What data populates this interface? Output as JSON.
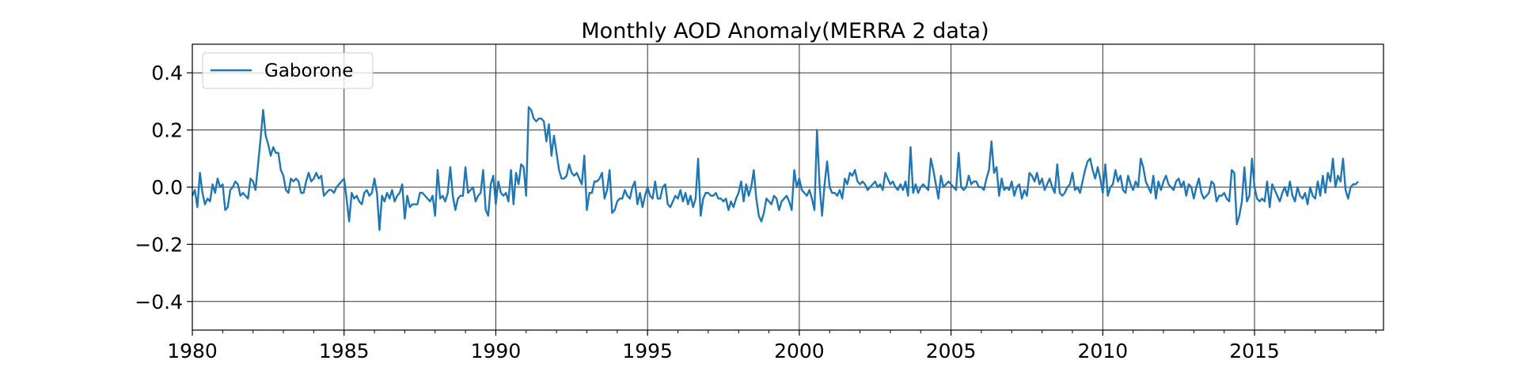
{
  "chart_data": {
    "type": "line",
    "title": "Monthly AOD Anomaly(MERRA 2 data)",
    "xlabel": "",
    "ylabel": "",
    "xlim": [
      1980.0,
      2019.25
    ],
    "ylim": [
      -0.5,
      0.5
    ],
    "x_ticks": [
      1980,
      1985,
      1990,
      1995,
      2000,
      2005,
      2010,
      2015
    ],
    "x_tick_labels": [
      "1980",
      "1985",
      "1990",
      "1995",
      "2000",
      "2005",
      "2010",
      "2015"
    ],
    "y_ticks": [
      -0.4,
      -0.2,
      0.0,
      0.2,
      0.4
    ],
    "y_tick_labels": [
      "−0.4",
      "−0.2",
      "0.0",
      "0.2",
      "0.4"
    ],
    "grid": true,
    "legend_position": "top-left",
    "line_color": "#1f77b4",
    "series": [
      {
        "name": "Gaborone",
        "x_start": "1980-01",
        "frequency": "monthly",
        "values": [
          -0.03,
          -0.01,
          -0.07,
          0.05,
          -0.02,
          -0.06,
          -0.04,
          -0.05,
          0.01,
          -0.02,
          0.03,
          0.0,
          0.01,
          -0.08,
          -0.07,
          -0.01,
          0.0,
          0.02,
          0.01,
          -0.03,
          -0.02,
          -0.03,
          -0.04,
          0.03,
          0.02,
          -0.01,
          0.08,
          0.17,
          0.27,
          0.18,
          0.15,
          0.11,
          0.14,
          0.12,
          0.12,
          0.06,
          0.04,
          -0.01,
          -0.02,
          0.03,
          0.02,
          0.03,
          0.02,
          -0.02,
          -0.02,
          0.02,
          0.05,
          0.02,
          0.03,
          0.05,
          0.03,
          0.04,
          -0.03,
          -0.02,
          -0.01,
          -0.01,
          -0.02,
          0.0,
          0.01,
          0.02,
          0.03,
          -0.04,
          -0.12,
          -0.02,
          -0.04,
          -0.03,
          -0.05,
          -0.06,
          -0.02,
          -0.01,
          -0.03,
          -0.02,
          0.03,
          -0.02,
          -0.15,
          -0.03,
          -0.05,
          -0.02,
          -0.04,
          -0.01,
          -0.05,
          -0.03,
          -0.02,
          0.01,
          -0.11,
          -0.03,
          -0.07,
          -0.06,
          -0.06,
          -0.06,
          -0.02,
          -0.02,
          -0.03,
          -0.04,
          -0.05,
          -0.03,
          -0.1,
          0.06,
          -0.04,
          -0.03,
          -0.05,
          -0.02,
          0.07,
          -0.03,
          -0.08,
          -0.04,
          -0.03,
          -0.03,
          0.07,
          -0.02,
          -0.01,
          0.0,
          -0.05,
          -0.03,
          -0.02,
          0.06,
          -0.08,
          -0.1,
          0.01,
          0.04,
          -0.06,
          0.02,
          -0.02,
          -0.03,
          -0.02,
          -0.05,
          0.06,
          -0.06,
          0.05,
          0.01,
          0.08,
          0.07,
          -0.03,
          0.28,
          0.27,
          0.24,
          0.23,
          0.24,
          0.24,
          0.23,
          0.16,
          0.22,
          0.11,
          0.18,
          0.12,
          0.06,
          0.03,
          0.03,
          0.04,
          0.08,
          0.05,
          0.04,
          0.05,
          0.03,
          0.01,
          0.11,
          -0.08,
          -0.02,
          -0.02,
          0.02,
          0.02,
          0.03,
          0.05,
          -0.04,
          -0.01,
          0.06,
          -0.09,
          -0.08,
          -0.05,
          -0.04,
          -0.04,
          -0.01,
          -0.03,
          -0.04,
          0.0,
          0.02,
          -0.06,
          -0.02,
          -0.07,
          -0.03,
          0.0,
          -0.03,
          -0.04,
          0.02,
          -0.04,
          -0.04,
          0.0,
          0.01,
          -0.06,
          -0.07,
          -0.05,
          -0.03,
          -0.04,
          -0.01,
          -0.05,
          -0.02,
          -0.06,
          -0.03,
          -0.07,
          -0.04,
          0.1,
          -0.1,
          -0.04,
          -0.02,
          -0.02,
          -0.03,
          -0.03,
          -0.02,
          -0.04,
          -0.04,
          -0.05,
          -0.04,
          -0.08,
          -0.05,
          -0.07,
          -0.04,
          -0.02,
          0.02,
          -0.05,
          0.01,
          -0.03,
          0.0,
          0.06,
          -0.04,
          -0.1,
          -0.12,
          -0.09,
          -0.04,
          -0.05,
          -0.06,
          -0.03,
          -0.04,
          -0.08,
          -0.05,
          -0.04,
          -0.03,
          -0.05,
          -0.08,
          0.06,
          0.0,
          0.03,
          -0.01,
          -0.02,
          -0.03,
          -0.01,
          -0.04,
          -0.08,
          0.2,
          0.01,
          -0.1,
          0.01,
          0.09,
          0.0,
          -0.02,
          -0.02,
          -0.03,
          -0.01,
          -0.04,
          0.03,
          0.01,
          0.05,
          0.04,
          0.06,
          0.02,
          0.01,
          0.02,
          0.01,
          -0.01,
          0.0,
          0.01,
          0.02,
          0.0,
          0.01,
          -0.01,
          0.05,
          0.03,
          0.01,
          0.02,
          0.0,
          -0.01,
          0.01,
          -0.01,
          0.02,
          -0.03,
          0.14,
          -0.02,
          0.01,
          -0.02,
          0.0,
          0.01,
          0.0,
          -0.01,
          0.1,
          0.06,
          0.01,
          -0.04,
          0.04,
          0.0,
          0.01,
          0.02,
          0.01,
          0.0,
          -0.01,
          0.12,
          0.0,
          -0.01,
          0.0,
          0.04,
          0.01,
          0.02,
          0.02,
          0.0,
          0.0,
          -0.01,
          0.03,
          0.06,
          0.16,
          0.05,
          0.07,
          -0.03,
          0.03,
          -0.01,
          0.0,
          -0.01,
          0.02,
          -0.03,
          0.0,
          0.01,
          -0.04,
          -0.01,
          -0.03,
          0.05,
          0.04,
          0.02,
          0.05,
          0.01,
          0.03,
          -0.01,
          0.01,
          0.03,
          0.0,
          -0.02,
          0.08,
          -0.02,
          -0.03,
          -0.02,
          0.0,
          0.01,
          0.05,
          -0.01,
          0.0,
          -0.02,
          0.02,
          0.06,
          0.09,
          0.1,
          0.06,
          0.03,
          0.07,
          0.03,
          -0.02,
          0.08,
          -0.03,
          0.0,
          0.01,
          0.06,
          0.02,
          0.04,
          -0.01,
          -0.02,
          0.04,
          0.01,
          -0.01,
          0.02,
          0.0,
          0.1,
          0.07,
          0.02,
          0.0,
          -0.02,
          0.04,
          -0.04,
          0.02,
          -0.01,
          0.02,
          0.04,
          0.01,
          0.0,
          -0.01,
          0.02,
          0.03,
          0.0,
          0.02,
          -0.03,
          0.01,
          0.0,
          -0.04,
          0.0,
          0.03,
          -0.02,
          -0.04,
          -0.03,
          -0.02,
          0.02,
          0.01,
          -0.05,
          -0.03,
          -0.03,
          -0.02,
          -0.04,
          -0.05,
          0.06,
          0.05,
          -0.13,
          -0.1,
          -0.05,
          0.07,
          -0.05,
          -0.03,
          0.1,
          0.0,
          -0.04,
          -0.05,
          -0.04,
          -0.05,
          0.02,
          -0.07,
          0.01,
          -0.01,
          -0.03,
          -0.05,
          -0.02,
          0.0,
          -0.03,
          0.02,
          -0.03,
          -0.05,
          0.0,
          -0.03,
          -0.04,
          -0.02,
          -0.06,
          0.0,
          -0.03,
          -0.04,
          0.02,
          -0.03,
          0.04,
          -0.02,
          0.05,
          0.02,
          0.1,
          0.0,
          0.04,
          0.02,
          0.1,
          -0.01,
          -0.04,
          0.0,
          0.01,
          0.01,
          0.02
        ]
      }
    ]
  }
}
